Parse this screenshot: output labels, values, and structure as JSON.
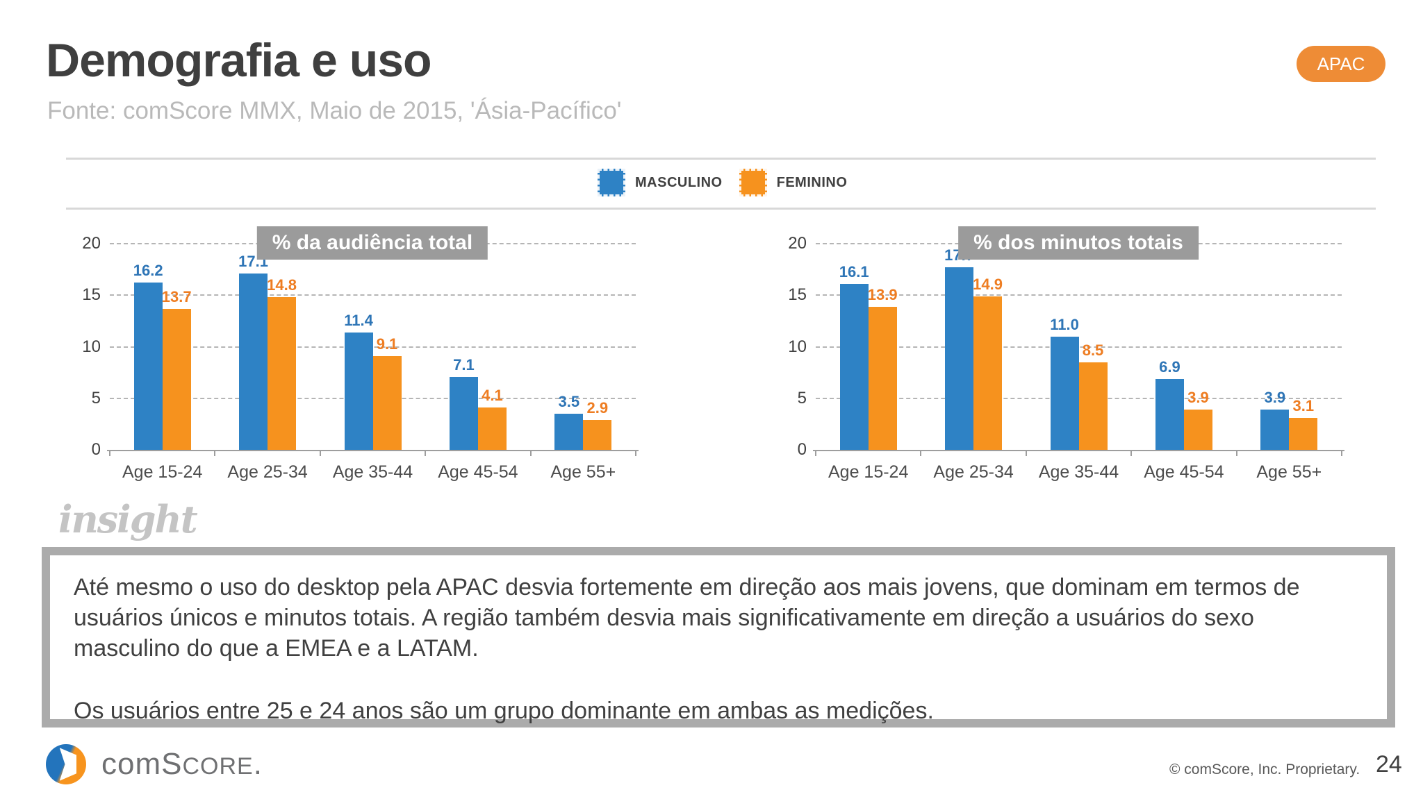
{
  "slide": {
    "title": "Demografia e uso",
    "subtitle": "Fonte: comScore MMX, Maio de 2015, 'Ásia-Pacífico'",
    "region_badge": "APAC",
    "insight_logo": "insight",
    "page_number": "24",
    "copyright": "© comScore, Inc. Proprietary.",
    "logo": {
      "lead": "comS",
      "caps": "CORE",
      "dot": "."
    }
  },
  "legend": {
    "items": [
      {
        "label": "MASCULINO",
        "color": "#2e82c5"
      },
      {
        "label": "FEMININO",
        "color": "#f6921e"
      }
    ]
  },
  "insight": {
    "paragraph1": "Até mesmo o uso do desktop pela APAC desvia fortemente em direção aos mais jovens, que dominam em termos de usuários únicos e minutos totais. A região também desvia mais significativamente em direção a usuários do sexo masculino do que a EMEA e a LATAM.",
    "paragraph2": "Os usuários entre 25 e 24 anos são um grupo dominante em ambas as medições."
  },
  "chart_data": [
    {
      "type": "bar",
      "title": "% da audiência total",
      "categories": [
        "Age 15-24",
        "Age 25-34",
        "Age 35-44",
        "Age 45-54",
        "Age 55+"
      ],
      "series": [
        {
          "name": "MASCULINO",
          "color": "#2e82c5",
          "label_color": "#2e75b6",
          "values": [
            16.2,
            17.1,
            11.4,
            7.1,
            3.5
          ]
        },
        {
          "name": "FEMININO",
          "color": "#f6921e",
          "label_color": "#ee7d22",
          "values": [
            13.7,
            14.8,
            9.1,
            4.1,
            2.9
          ]
        }
      ],
      "ylim": [
        0,
        20
      ],
      "yticks": [
        0,
        5,
        10,
        15,
        20
      ],
      "grid": "dashed horizontal",
      "legend_position": "top-center-shared"
    },
    {
      "type": "bar",
      "title": "% dos minutos totais",
      "categories": [
        "Age 15-24",
        "Age 25-34",
        "Age 35-44",
        "Age 45-54",
        "Age 55+"
      ],
      "series": [
        {
          "name": "MASCULINO",
          "color": "#2e82c5",
          "label_color": "#2e75b6",
          "values": [
            16.1,
            17.7,
            11.0,
            6.9,
            3.9
          ]
        },
        {
          "name": "FEMININO",
          "color": "#f6921e",
          "label_color": "#ee7d22",
          "values": [
            13.9,
            14.9,
            8.5,
            3.9,
            3.1
          ]
        }
      ],
      "ylim": [
        0,
        20
      ],
      "yticks": [
        0,
        5,
        10,
        15,
        20
      ],
      "grid": "dashed horizontal",
      "legend_position": "top-center-shared"
    }
  ]
}
